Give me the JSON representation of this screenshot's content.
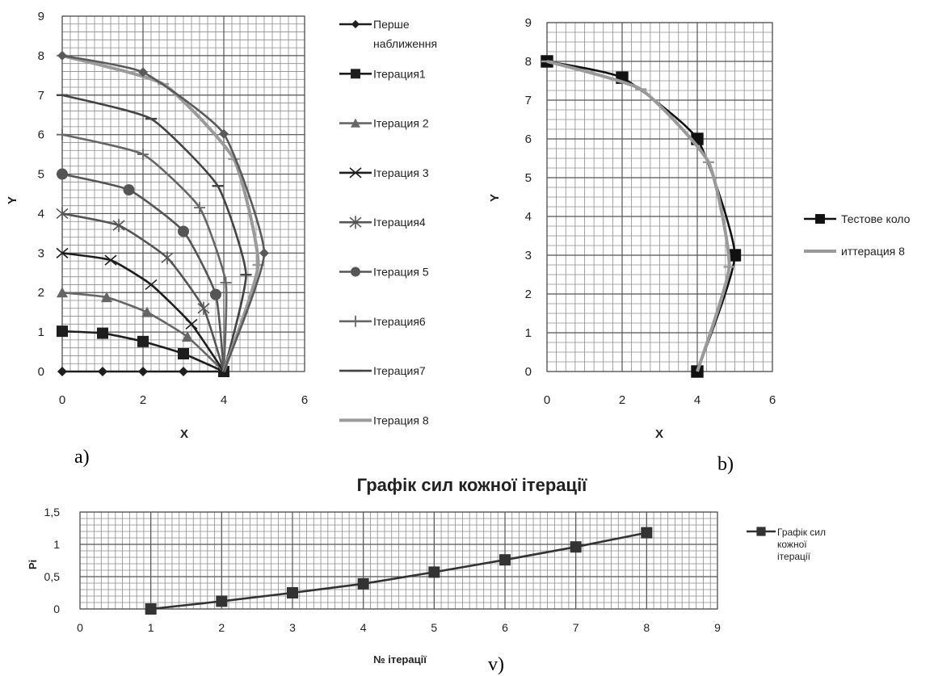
{
  "chart_data": [
    {
      "type": "line",
      "panel_label": "a)",
      "xlabel": "X",
      "ylabel": "Y",
      "xlim": [
        0,
        6
      ],
      "ylim": [
        0,
        9
      ],
      "x_ticks": [
        "0",
        "2",
        "4",
        "6"
      ],
      "y_ticks": [
        "0",
        "1",
        "2",
        "3",
        "4",
        "5",
        "6",
        "7",
        "8",
        "9"
      ],
      "grid": true,
      "legend_position": "right",
      "series": [
        {
          "name": "Перше наближення",
          "color": "#1e1e1e",
          "marker": "diamond",
          "points": [
            [
              0,
              0
            ],
            [
              1,
              0
            ],
            [
              2,
              0
            ],
            [
              3,
              0
            ],
            [
              4,
              0
            ]
          ],
          "marker_points": [
            [
              0,
              0
            ],
            [
              1,
              0
            ],
            [
              2,
              0
            ],
            [
              3,
              0
            ],
            [
              4,
              0
            ]
          ]
        },
        {
          "name": "Ітерация1",
          "color": "#1e1e1e",
          "marker": "square",
          "points": [
            [
              0,
              1.02
            ],
            [
              1,
              0.97
            ],
            [
              2,
              0.76
            ],
            [
              3,
              0.45
            ],
            [
              4,
              0
            ]
          ],
          "marker_points": [
            [
              0,
              1.02
            ],
            [
              1,
              0.97
            ],
            [
              2,
              0.76
            ],
            [
              3,
              0.45
            ],
            [
              4,
              0
            ]
          ]
        },
        {
          "name": "Ітерация 2",
          "color": "#666666",
          "marker": "triangle",
          "points": [
            [
              0,
              2
            ],
            [
              1.1,
              1.88
            ],
            [
              2.1,
              1.5
            ],
            [
              3.1,
              0.88
            ],
            [
              4,
              0
            ]
          ],
          "marker_points": [
            [
              0,
              2
            ],
            [
              1.1,
              1.88
            ],
            [
              2.1,
              1.5
            ],
            [
              3.1,
              0.88
            ]
          ]
        },
        {
          "name": "Ітерация 3",
          "color": "#1e1e1e",
          "marker": "x",
          "points": [
            [
              0,
              3
            ],
            [
              1.2,
              2.82
            ],
            [
              2.2,
              2.2
            ],
            [
              3.2,
              1.2
            ],
            [
              4,
              0
            ]
          ],
          "marker_points": [
            [
              0,
              3
            ],
            [
              1.2,
              2.82
            ],
            [
              2.2,
              2.2
            ],
            [
              3.2,
              1.2
            ]
          ]
        },
        {
          "name": "Ітерация4",
          "color": "#555555",
          "marker": "star",
          "points": [
            [
              0,
              4
            ],
            [
              1.4,
              3.7
            ],
            [
              2.6,
              2.88
            ],
            [
              3.5,
              1.6
            ],
            [
              4,
              0
            ]
          ],
          "marker_points": [
            [
              0,
              4
            ],
            [
              1.4,
              3.7
            ],
            [
              2.6,
              2.88
            ],
            [
              3.5,
              1.6
            ]
          ]
        },
        {
          "name": "Ітерация 5",
          "color": "#555555",
          "marker": "circle",
          "points": [
            [
              0,
              5
            ],
            [
              1.65,
              4.6
            ],
            [
              3.0,
              3.55
            ],
            [
              3.8,
              1.95
            ],
            [
              4,
              0
            ]
          ],
          "marker_points": [
            [
              0,
              5
            ],
            [
              1.65,
              4.6
            ],
            [
              3.0,
              3.55
            ],
            [
              3.8,
              1.95
            ]
          ]
        },
        {
          "name": "Ітерация6",
          "color": "#666666",
          "marker": "plus",
          "points": [
            [
              0,
              6
            ],
            [
              2,
              5.5
            ],
            [
              3.4,
              4.15
            ],
            [
              4.05,
              2.25
            ],
            [
              4,
              0
            ]
          ],
          "marker_points": [
            [
              0,
              6
            ],
            [
              2,
              5.5
            ],
            [
              3.4,
              4.15
            ],
            [
              4.05,
              2.25
            ]
          ]
        },
        {
          "name": "Ітерация7",
          "color": "#444444",
          "marker": "dash",
          "points": [
            [
              0,
              7
            ],
            [
              2.2,
              6.4
            ],
            [
              3.85,
              4.7
            ],
            [
              4.55,
              2.45
            ],
            [
              4,
              0
            ]
          ],
          "marker_points": [
            [
              0,
              7
            ],
            [
              2.2,
              6.4
            ],
            [
              3.85,
              4.7
            ],
            [
              4.55,
              2.45
            ]
          ]
        },
        {
          "name": "Ітерация 8",
          "color": "#9a9a9a",
          "marker": "dash",
          "points": [
            [
              0,
              8
            ],
            [
              2.5,
              7.28
            ],
            [
              4.25,
              5.38
            ],
            [
              4.85,
              2.7
            ],
            [
              4,
              0
            ]
          ],
          "marker_points": [
            [
              0,
              8
            ],
            [
              2.5,
              7.28
            ],
            [
              4.25,
              5.38
            ],
            [
              4.85,
              2.7
            ]
          ]
        },
        {
          "name": "",
          "color": "#5a5a5a",
          "marker": "diamond",
          "points": [
            [
              0,
              8
            ],
            [
              2,
              7.58
            ],
            [
              4,
              6.02
            ],
            [
              5,
              3.0
            ],
            [
              4,
              0
            ]
          ],
          "marker_points": [
            [
              0,
              8
            ],
            [
              2,
              7.58
            ],
            [
              4,
              6.02
            ],
            [
              5,
              3.0
            ]
          ]
        }
      ]
    },
    {
      "type": "line",
      "panel_label": "b)",
      "xlabel": "X",
      "ylabel": "Y",
      "xlim": [
        0,
        6
      ],
      "ylim": [
        0,
        9
      ],
      "x_ticks": [
        "0",
        "2",
        "4",
        "6"
      ],
      "y_ticks": [
        "0",
        "1",
        "2",
        "3",
        "4",
        "5",
        "6",
        "7",
        "8",
        "9"
      ],
      "grid": true,
      "legend_position": "right",
      "series": [
        {
          "name": "Тестове коло",
          "color": "#111111",
          "marker": "square",
          "points": [
            [
              0,
              8
            ],
            [
              2,
              7.58
            ],
            [
              4,
              6.0
            ],
            [
              5,
              3.0
            ],
            [
              4,
              0
            ]
          ],
          "marker_points": [
            [
              0,
              8
            ],
            [
              2,
              7.58
            ],
            [
              4,
              6.0
            ],
            [
              5,
              3.0
            ],
            [
              4,
              0
            ]
          ]
        },
        {
          "name": "иттерация 8",
          "color": "#9a9a9a",
          "marker": "dash",
          "points": [
            [
              0,
              8
            ],
            [
              2.5,
              7.28
            ],
            [
              4.3,
              5.4
            ],
            [
              4.85,
              2.7
            ],
            [
              4,
              0
            ]
          ],
          "marker_points": [
            [
              0,
              8
            ],
            [
              2.5,
              7.28
            ],
            [
              4.3,
              5.4
            ],
            [
              4.85,
              2.7
            ]
          ]
        }
      ]
    },
    {
      "type": "line",
      "panel_label": "v)",
      "title": "Графік сил кожної ітерації",
      "xlabel": "№ ітерації",
      "ylabel": "Pi",
      "xlim": [
        0,
        9
      ],
      "ylim": [
        0,
        1.5
      ],
      "x_ticks": [
        "0",
        "1",
        "2",
        "3",
        "4",
        "5",
        "6",
        "7",
        "8",
        "9"
      ],
      "y_ticks": [
        "0",
        "0,5",
        "1",
        "1,5"
      ],
      "grid": true,
      "legend_position": "right",
      "series": [
        {
          "name": "Графік сил кожної ітерації",
          "legend_lines": [
            "Графік сил",
            "кожної",
            "ітерації"
          ],
          "color": "#333333",
          "marker": "square",
          "points": [
            [
              1,
              0
            ],
            [
              2,
              0.12
            ],
            [
              3,
              0.25
            ],
            [
              4,
              0.39
            ],
            [
              5,
              0.57
            ],
            [
              6,
              0.76
            ],
            [
              7,
              0.96
            ],
            [
              8,
              1.18
            ]
          ],
          "marker_points": [
            [
              1,
              0
            ],
            [
              2,
              0.12
            ],
            [
              3,
              0.25
            ],
            [
              4,
              0.39
            ],
            [
              5,
              0.57
            ],
            [
              6,
              0.76
            ],
            [
              7,
              0.96
            ],
            [
              8,
              1.18
            ]
          ]
        }
      ]
    }
  ]
}
